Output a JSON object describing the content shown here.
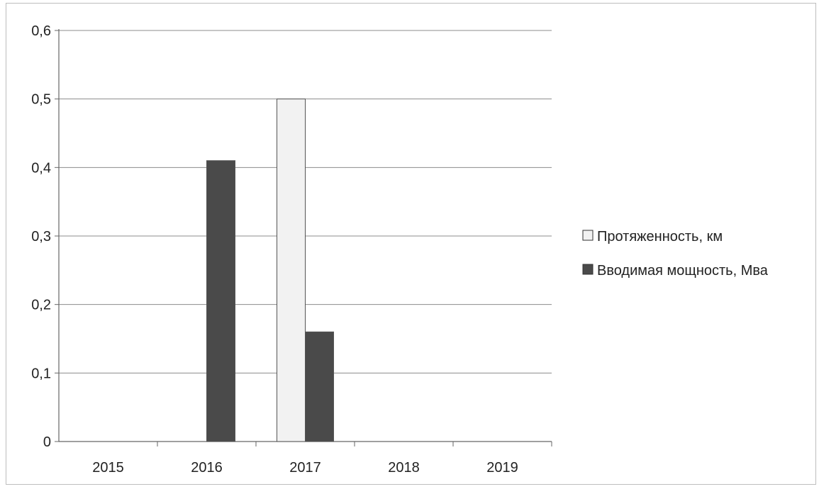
{
  "chart_data": {
    "type": "bar",
    "title": "",
    "xlabel": "",
    "ylabel": "",
    "categories": [
      "2015",
      "2016",
      "2017",
      "2018",
      "2019"
    ],
    "series": [
      {
        "name": "Протяженность, км",
        "values": [
          0,
          0,
          0.5,
          0,
          0
        ],
        "color": "#f2f2f2"
      },
      {
        "name": "Вводимая мощность, Мва",
        "values": [
          0,
          0.41,
          0.16,
          0,
          0
        ],
        "color": "#4a4a4a"
      }
    ],
    "ylim": [
      0,
      0.6
    ],
    "yticks": [
      "0",
      "0,1",
      "0,2",
      "0,3",
      "0,4",
      "0,5",
      "0,6"
    ],
    "grid": true,
    "legend_position": "right"
  }
}
